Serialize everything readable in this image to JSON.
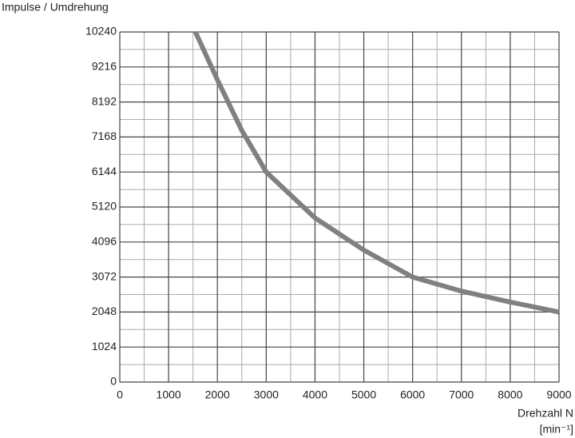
{
  "chart_data": {
    "type": "line",
    "y_label": "Impulse / Umdrehung",
    "x_label": "Drehzahl N",
    "x_unit": "[min⁻¹]",
    "x": [
      1550,
      2000,
      2500,
      3000,
      4000,
      5000,
      6000,
      7000,
      8000,
      9000
    ],
    "series": [
      {
        "name": "Impulse",
        "color": "#808080",
        "values": [
          10240,
          8840,
          7360,
          6144,
          4800,
          3860,
          3072,
          2660,
          2340,
          2048
        ]
      }
    ],
    "xlim": [
      0,
      9000
    ],
    "xticks": [
      0,
      1000,
      2000,
      3000,
      4000,
      5000,
      6000,
      7000,
      8000,
      9000
    ],
    "ylim": [
      0,
      10240
    ],
    "yticks": [
      0,
      1024,
      2048,
      3072,
      4096,
      5120,
      6144,
      7168,
      8192,
      9216,
      10240
    ],
    "minor_xticks": [
      500,
      1500,
      2500,
      3500,
      4500,
      5500,
      6500,
      7500,
      8500
    ],
    "minor_yticks": [
      512,
      1536,
      2560,
      3584,
      4608,
      5632,
      6656,
      7680,
      8704,
      9728
    ],
    "grid": true
  }
}
